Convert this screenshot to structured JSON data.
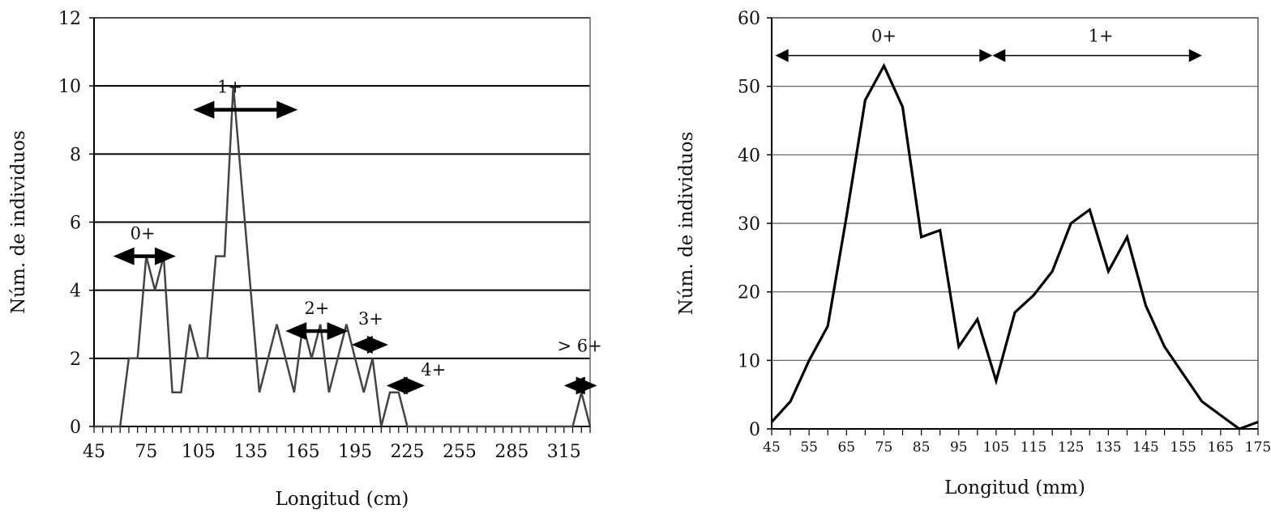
{
  "chart_data": [
    {
      "type": "line",
      "xlabel": "Longitud (cm)",
      "ylabel": "Núm. de individuos",
      "ylim": [
        0,
        12
      ],
      "yticks": [
        "0",
        "2",
        "4",
        "6",
        "8",
        "10",
        "12"
      ],
      "xlim": [
        45,
        330
      ],
      "xticks": [
        "45",
        "75",
        "105",
        "135",
        "165",
        "195",
        "225",
        "255",
        "285",
        "315"
      ],
      "grid": true,
      "series": [
        {
          "name": "Núm. de individuos",
          "x": [
            45,
            50,
            55,
            60,
            65,
            70,
            75,
            80,
            85,
            90,
            95,
            100,
            105,
            110,
            115,
            120,
            125,
            130,
            135,
            140,
            145,
            150,
            155,
            160,
            165,
            170,
            175,
            180,
            185,
            190,
            195,
            200,
            205,
            210,
            215,
            220,
            225,
            230,
            235,
            240,
            245,
            250,
            255,
            260,
            265,
            270,
            275,
            280,
            285,
            290,
            295,
            300,
            305,
            310,
            315,
            320,
            325,
            330
          ],
          "y": [
            0,
            0,
            0,
            0,
            2,
            2,
            5,
            4,
            5,
            1,
            1,
            3,
            2,
            2,
            5,
            5,
            10,
            7,
            4,
            1,
            2,
            3,
            2,
            1,
            3,
            2,
            3,
            1,
            2,
            3,
            2,
            1,
            2,
            0,
            1,
            1,
            0,
            0,
            0,
            0,
            0,
            0,
            0,
            0,
            0,
            0,
            0,
            0,
            0,
            0,
            0,
            0,
            0,
            0,
            0,
            0,
            1,
            0
          ]
        }
      ],
      "annotations": [
        {
          "label": "0+",
          "from": 56,
          "to": 92,
          "y": 5,
          "label_x": 73,
          "label_y": 5.5
        },
        {
          "label": "1+",
          "from": 102,
          "to": 162,
          "y": 9.3,
          "label_x": 123,
          "label_y": 9.8
        },
        {
          "label": "2+",
          "from": 155,
          "to": 191,
          "y": 2.8,
          "label_x": 173,
          "label_y": 3.3
        },
        {
          "label": "3+",
          "from": 193,
          "to": 214,
          "y": 2.4,
          "label_x": 204,
          "label_y": 3.0
        },
        {
          "label": "4+",
          "from": 213,
          "to": 235,
          "y": 1.2,
          "label_x": 240,
          "label_y": 1.5
        },
        {
          "label": "> 6+",
          "from": 315,
          "to": 334,
          "y": 1.2,
          "label_x": 324,
          "label_y": 2.2
        }
      ]
    },
    {
      "type": "line",
      "xlabel": "Longitud (mm)",
      "ylabel": "Núm. de individuos",
      "ylim": [
        0,
        60
      ],
      "yticks": [
        "0",
        "10",
        "20",
        "30",
        "40",
        "50",
        "60"
      ],
      "xlim": [
        45,
        175
      ],
      "xticks": [
        "45",
        "55",
        "65",
        "75",
        "85",
        "95",
        "105",
        "115",
        "125",
        "135",
        "145",
        "155",
        "165",
        "175"
      ],
      "grid": true,
      "series": [
        {
          "name": "Núm. de individuos",
          "x": [
            45,
            50,
            55,
            60,
            65,
            70,
            75,
            80,
            85,
            90,
            95,
            100,
            105,
            110,
            115,
            120,
            125,
            130,
            135,
            140,
            145,
            150,
            155,
            160,
            165,
            170,
            175
          ],
          "y": [
            1,
            4,
            10,
            15,
            31,
            48,
            53,
            47,
            28,
            29,
            12,
            16,
            7,
            17,
            19.5,
            23,
            30,
            32,
            23,
            28,
            18,
            12,
            8,
            4,
            2,
            0,
            1
          ]
        }
      ],
      "annotations": [
        {
          "label": "0+",
          "from": 46,
          "to": 104,
          "y": 54.5,
          "label_x": 75,
          "label_y": 56.5
        },
        {
          "label": "1+",
          "from": 104,
          "to": 160,
          "y": 54.5,
          "label_x": 133,
          "label_y": 56.5
        }
      ]
    }
  ]
}
